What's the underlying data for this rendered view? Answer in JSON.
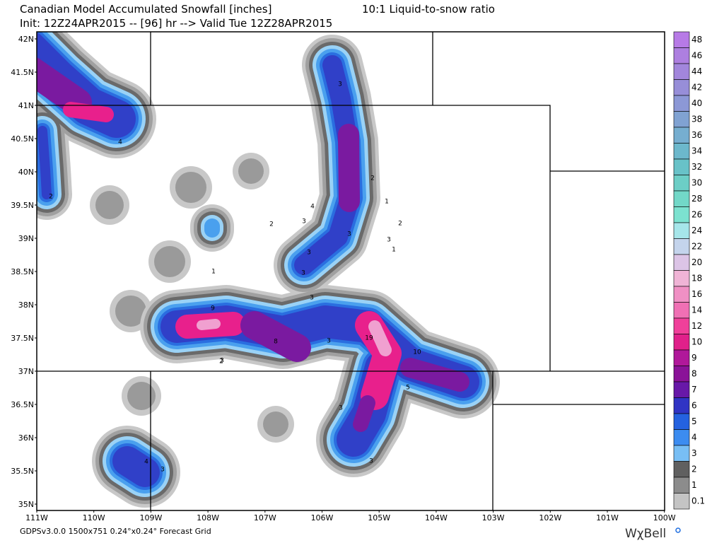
{
  "header": {
    "title": "Canadian Model Accumulated Snowfall [inches]",
    "ratio": "10:1 Liquid-to-snow ratio",
    "init": "Init: 12Z24APR2015 -- [96] hr --> Valid Tue 12Z28APR2015"
  },
  "map": {
    "lat_labels": [
      "42N",
      "41.5N",
      "41N",
      "40.5N",
      "40N",
      "39.5N",
      "39N",
      "38.5N",
      "38N",
      "37.5N",
      "37N",
      "36.5N",
      "36N",
      "35.5N",
      "35N"
    ],
    "lon_labels": [
      "111W",
      "110W",
      "109W",
      "108W",
      "107W",
      "106W",
      "105W",
      "104W",
      "103W",
      "102W",
      "101W",
      "100W"
    ],
    "contour_labels": [
      "4",
      "2",
      "3",
      "2",
      "1",
      "2",
      "4",
      "3",
      "2",
      "3",
      "3",
      "1",
      "3",
      "3",
      "1",
      "3",
      "3",
      "9",
      "8",
      "3",
      "19",
      "10",
      "2",
      "5",
      "3",
      "3",
      "4",
      "3"
    ]
  },
  "legend": {
    "labels": [
      "48",
      "46",
      "44",
      "42",
      "40",
      "38",
      "36",
      "34",
      "32",
      "30",
      "28",
      "26",
      "24",
      "22",
      "20",
      "18",
      "16",
      "14",
      "12",
      "10",
      "9",
      "8",
      "7",
      "6",
      "5",
      "4",
      "3",
      "2",
      "1",
      "0.1"
    ],
    "colors": [
      "#b77ae6",
      "#ad7fe0",
      "#a286dc",
      "#978ed8",
      "#8c98d6",
      "#80a2d2",
      "#76aed0",
      "#6cb8cc",
      "#68c2c8",
      "#6ccec6",
      "#72d8c8",
      "#7ce2d0",
      "#a6e6ea",
      "#c4d4ec",
      "#dcc4e6",
      "#f0b4d6",
      "#f090c4",
      "#f070b4",
      "#f0409a",
      "#e0208a",
      "#b0189a",
      "#8a1298",
      "#6818a8",
      "#3034c4",
      "#2462e0",
      "#3c8cf0",
      "#78bef4",
      "#606060",
      "#8c8c8c",
      "#c4c4c4"
    ]
  },
  "footer": {
    "grid": "GDPSv3.0.0 1500x751 0.24°x0.24° Forecast Grid",
    "logo": "WχBell"
  }
}
